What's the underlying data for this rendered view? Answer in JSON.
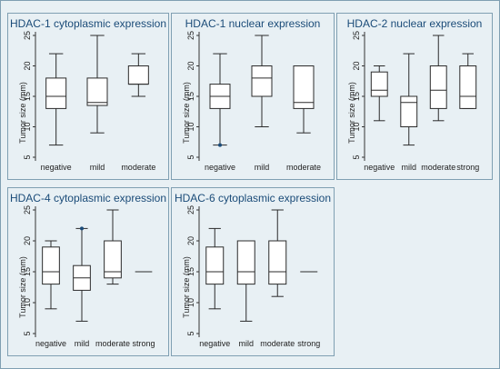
{
  "chart_data": [
    {
      "type": "box",
      "title": "HDAC-1 cytoplasmic expression",
      "ylabel": "Tumor size (mm)",
      "ylim": [
        5,
        25
      ],
      "yticks": [
        5,
        10,
        15,
        20,
        25
      ],
      "grid": false,
      "categories": [
        "negative",
        "mild",
        "moderate"
      ],
      "boxes": [
        {
          "min": 7,
          "q1": 13,
          "median": 15,
          "q3": 18,
          "max": 22,
          "outliers": []
        },
        {
          "min": 9,
          "q1": 13.5,
          "median": 14,
          "q3": 18,
          "max": 25,
          "outliers": []
        },
        {
          "min": 15,
          "q1": 17,
          "median": 17,
          "q3": 20,
          "max": 22,
          "outliers": []
        }
      ]
    },
    {
      "type": "box",
      "title": "HDAC-1 nuclear expression",
      "ylabel": "Tumor size (mm)",
      "ylim": [
        5,
        25
      ],
      "yticks": [
        5,
        10,
        15,
        20,
        25
      ],
      "grid": false,
      "categories": [
        "negative",
        "mild",
        "moderate"
      ],
      "boxes": [
        {
          "min": 7,
          "q1": 13,
          "median": 15,
          "q3": 17,
          "max": 22,
          "outliers": [
            7
          ]
        },
        {
          "min": 10,
          "q1": 15,
          "median": 18,
          "q3": 20,
          "max": 25,
          "outliers": []
        },
        {
          "min": 9,
          "q1": 13,
          "median": 14,
          "q3": 20,
          "max": 20,
          "outliers": []
        }
      ]
    },
    {
      "type": "box",
      "title": "HDAC-2 nuclear expression",
      "ylabel": "Tumor size (mm)",
      "ylim": [
        5,
        25
      ],
      "yticks": [
        5,
        10,
        15,
        20,
        25
      ],
      "grid": false,
      "categories": [
        "negative",
        "mild",
        "moderate",
        "strong"
      ],
      "boxes": [
        {
          "min": 11,
          "q1": 15,
          "median": 16,
          "q3": 19,
          "max": 20,
          "outliers": []
        },
        {
          "min": 7,
          "q1": 10,
          "median": 14,
          "q3": 15,
          "max": 22,
          "outliers": []
        },
        {
          "min": 11,
          "q1": 13,
          "median": 16,
          "q3": 20,
          "max": 25,
          "outliers": []
        },
        {
          "min": 13,
          "q1": 13,
          "median": 15,
          "q3": 20,
          "max": 22,
          "outliers": []
        }
      ]
    },
    {
      "type": "box",
      "title": "HDAC-4 cytoplasmic expression",
      "ylabel": "Tumor size (mm)",
      "ylim": [
        5,
        25
      ],
      "yticks": [
        5,
        10,
        15,
        20,
        25
      ],
      "grid": false,
      "categories": [
        "negative",
        "mild",
        "moderate",
        "strong"
      ],
      "boxes": [
        {
          "min": 9,
          "q1": 13,
          "median": 15,
          "q3": 19,
          "max": 20,
          "outliers": []
        },
        {
          "min": 7,
          "q1": 12,
          "median": 14,
          "q3": 16,
          "max": 22,
          "outliers": [
            22
          ]
        },
        {
          "min": 13,
          "q1": 14,
          "median": 15,
          "q3": 20,
          "max": 25,
          "outliers": []
        },
        {
          "min": 15,
          "q1": 15,
          "median": 15,
          "q3": 15,
          "max": 15,
          "outliers": []
        }
      ]
    },
    {
      "type": "box",
      "title": "HDAC-6 cytoplasmic expression",
      "ylabel": "Tumor size (mm)",
      "ylim": [
        5,
        25
      ],
      "yticks": [
        5,
        10,
        15,
        20,
        25
      ],
      "grid": false,
      "categories": [
        "negative",
        "mild",
        "moderate",
        "strong"
      ],
      "boxes": [
        {
          "min": 9,
          "q1": 13,
          "median": 15,
          "q3": 19,
          "max": 22,
          "outliers": []
        },
        {
          "min": 7,
          "q1": 13,
          "median": 15,
          "q3": 20,
          "max": 20,
          "outliers": []
        },
        {
          "min": 11,
          "q1": 13,
          "median": 15,
          "q3": 20,
          "max": 25,
          "outliers": []
        },
        {
          "min": 15,
          "q1": 15,
          "median": 15,
          "q3": 15,
          "max": 15,
          "outliers": []
        }
      ]
    }
  ],
  "colors": {
    "title": "#1a4b78",
    "box_stroke": "#2b2b2b",
    "box_fill": "#ffffff",
    "outlier": "#1a4b78",
    "panel_bg": "#e8f0f4"
  }
}
